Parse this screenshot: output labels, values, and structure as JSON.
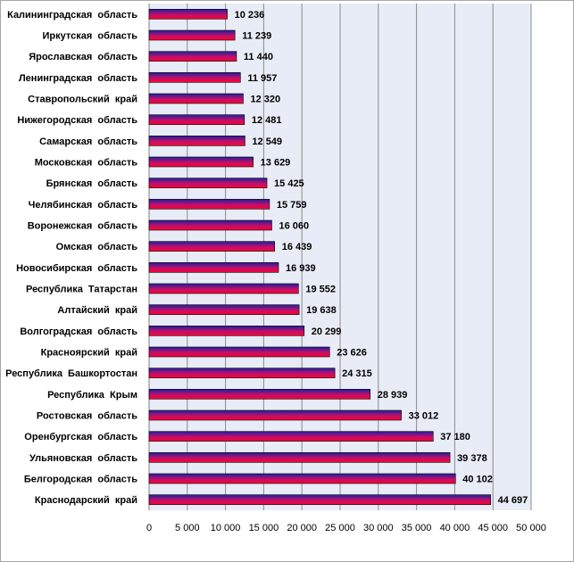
{
  "chart_data": {
    "type": "bar",
    "orientation": "horizontal",
    "categories": [
      "Калининградская  область",
      "Иркутская  область",
      "Ярославская  область",
      "Ленинградская  область",
      "Ставропольский  край",
      "Нижегородская  область",
      "Самарская  область",
      "Московская  область",
      "Брянская  область",
      "Челябинская  область",
      "Воронежская  область",
      "Омская  область",
      "Новосибирская  область",
      "Республика  Татарстан",
      "Алтайский  край",
      "Волгоградская  область",
      "Красноярский  край",
      "Республика  Башкортостан",
      "Республика  Крым",
      "Ростовская  область",
      "Оренбургская  область",
      "Ульяновская  область",
      "Белгородская  область",
      "Краснодарский  край"
    ],
    "values": [
      10236,
      11239,
      11440,
      11957,
      12320,
      12481,
      12549,
      13629,
      15425,
      15759,
      16060,
      16439,
      16939,
      19552,
      19638,
      20299,
      23626,
      24315,
      28939,
      33012,
      37180,
      39378,
      40102,
      44697
    ],
    "value_labels": [
      "10 236",
      "11 239",
      "11 440",
      "11 957",
      "12 320",
      "12 481",
      "12 549",
      "13 629",
      "15 425",
      "15 759",
      "16 060",
      "16 439",
      "16 939",
      "19 552",
      "19 638",
      "20 299",
      "23 626",
      "24 315",
      "28 939",
      "33 012",
      "37 180",
      "39 378",
      "40 102",
      "44 697"
    ],
    "xticks": [
      "0",
      "5 000",
      "10 000",
      "15 000",
      "20 000",
      "25 000",
      "30 000",
      "35 000",
      "40 000",
      "45 000",
      "50 000"
    ],
    "xlim": [
      0,
      50000
    ],
    "grid": true,
    "colors": {
      "bar_top": "#1f1fa0",
      "bar_bottom": "#ff0033",
      "plot_bg": "#e8ecf6",
      "grid": "#8c8c8c"
    },
    "title": "",
    "xlabel": "",
    "ylabel": ""
  }
}
